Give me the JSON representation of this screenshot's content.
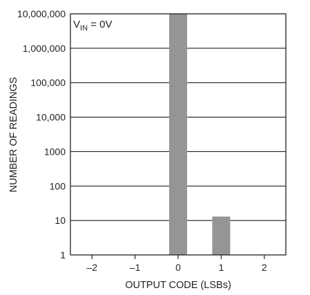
{
  "chart_data": {
    "type": "bar",
    "title": "",
    "xlabel": "OUTPUT CODE (LSBs)",
    "ylabel": "NUMBER OF READINGS",
    "y_scale": "log",
    "ylim": [
      1,
      10000000
    ],
    "y_tick_labels": [
      "1",
      "10",
      "100",
      "1000",
      "10,000",
      "100,000",
      "1,000,000",
      "10,000,000"
    ],
    "categories": [
      "–2",
      "–1",
      "0",
      "1",
      "2"
    ],
    "values": [
      0,
      0,
      10000000,
      13,
      0
    ],
    "bar_color": "#959595",
    "grid": "horizontal",
    "annotation": {
      "prefix": "V",
      "subscript": "IN",
      "suffix": " = 0V"
    }
  }
}
